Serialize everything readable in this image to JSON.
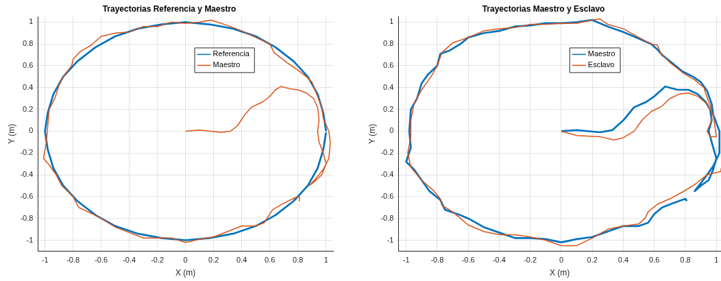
{
  "chart_data": [
    {
      "type": "line",
      "title": "Trayectorias Referencia y Maestro",
      "xlabel": "X (m)",
      "ylabel": "Y (m)",
      "xlim": [
        -1.05,
        1.05
      ],
      "ylim": [
        -1.1,
        1.05
      ],
      "xticks": [
        -1,
        -0.8,
        -0.6,
        -0.4,
        -0.2,
        0,
        0.2,
        0.4,
        0.6,
        0.8,
        1
      ],
      "yticks": [
        -1,
        -0.8,
        -0.6,
        -0.4,
        -0.2,
        0,
        0.2,
        0.4,
        0.6,
        0.8,
        1
      ],
      "grid": true,
      "legend": "top right",
      "series": [
        {
          "name": "Referencia",
          "color": "#0072bd",
          "x": [
            1,
            0.98,
            0.94,
            0.87,
            0.77,
            0.64,
            0.5,
            0.34,
            0.17,
            0,
            -0.17,
            -0.34,
            -0.5,
            -0.64,
            -0.77,
            -0.87,
            -0.94,
            -0.98,
            -1,
            -0.98,
            -0.94,
            -0.87,
            -0.77,
            -0.64,
            -0.5,
            -0.34,
            -0.17,
            0,
            0.17,
            0.34,
            0.5,
            0.64,
            0.77,
            0.87,
            0.94,
            0.98,
            1
          ],
          "values": [
            0,
            0.17,
            0.34,
            0.5,
            0.64,
            0.77,
            0.87,
            0.94,
            0.98,
            1,
            0.98,
            0.94,
            0.87,
            0.77,
            0.64,
            0.5,
            0.34,
            0.17,
            0,
            -0.17,
            -0.34,
            -0.5,
            -0.64,
            -0.77,
            -0.87,
            -0.94,
            -0.98,
            -1,
            -0.98,
            -0.94,
            -0.87,
            -0.77,
            -0.64,
            -0.5,
            -0.34,
            -0.17,
            -0.01
          ]
        },
        {
          "name": "Maestro",
          "color": "#d95319",
          "x": [
            0,
            0.1,
            0.18,
            0.25,
            0.32,
            0.37,
            0.42,
            0.47,
            0.55,
            0.6,
            0.64,
            0.68,
            0.74,
            0.8,
            0.86,
            0.91,
            0.94,
            0.95,
            0.94,
            0.95,
            0.98,
            1.0,
            0.97,
            0.92,
            0.88,
            0.93,
            0.98,
            1.02,
            1.03,
            1.02,
            0.98,
            0.97,
            0.93,
            0.9,
            0.86,
            0.8,
            0.72,
            0.63,
            0.6,
            0.5,
            0.4,
            0.3,
            0.18,
            0.1,
            0,
            -0.1,
            -0.2,
            -0.3,
            -0.4,
            -0.5,
            -0.6,
            -0.67,
            -0.75,
            -0.8,
            -0.81,
            -0.86,
            -0.9,
            -0.93,
            -0.97,
            -0.98,
            -0.99,
            -1.01,
            -0.97,
            -0.92,
            -0.88,
            -0.8,
            -0.76,
            -0.66,
            -0.6,
            -0.5,
            -0.4,
            -0.3,
            -0.2,
            -0.1,
            0,
            0.1,
            0.2,
            0.3,
            0.4,
            0.5,
            0.56,
            0.62,
            0.7,
            0.78,
            0.81,
            0.81
          ],
          "values": [
            0,
            0.01,
            0,
            -0.01,
            0,
            0.05,
            0.15,
            0.22,
            0.27,
            0.32,
            0.38,
            0.41,
            0.39,
            0.38,
            0.35,
            0.3,
            0.22,
            0.1,
            0,
            -0.1,
            -0.2,
            -0.3,
            -0.4,
            -0.46,
            -0.5,
            -0.43,
            -0.35,
            -0.25,
            -0.1,
            0,
            0.12,
            0.22,
            0.35,
            0.45,
            0.5,
            0.56,
            0.63,
            0.72,
            0.8,
            0.86,
            0.92,
            0.97,
            1.02,
            1.0,
            0.99,
            1.0,
            0.96,
            0.96,
            0.91,
            0.9,
            0.87,
            0.79,
            0.73,
            0.66,
            0.6,
            0.52,
            0.42,
            0.3,
            0.2,
            0.05,
            -0.1,
            -0.25,
            -0.31,
            -0.4,
            -0.5,
            -0.6,
            -0.7,
            -0.76,
            -0.8,
            -0.88,
            -0.93,
            -0.98,
            -0.98,
            -0.98,
            -1.02,
            -0.99,
            -0.97,
            -0.92,
            -0.87,
            -0.87,
            -0.84,
            -0.72,
            -0.66,
            -0.61,
            -0.6,
            -0.64
          ]
        }
      ]
    },
    {
      "type": "line",
      "title": "Trayectorias Maestro y Esclavo",
      "xlabel": "X (m)",
      "ylabel": "Y (m)",
      "xlim": [
        -1.05,
        1.03
      ],
      "ylim": [
        -1.1,
        1.05
      ],
      "xticks": [
        -1,
        -0.8,
        -0.6,
        -0.4,
        -0.2,
        0,
        0.2,
        0.4,
        0.6,
        0.8,
        1
      ],
      "yticks": [
        -1,
        -0.8,
        -0.6,
        -0.4,
        -0.2,
        0,
        0.2,
        0.4,
        0.6,
        0.8,
        1
      ],
      "grid": true,
      "legend": "top right",
      "series": [
        {
          "name": "Maestro",
          "color": "#0072bd",
          "x": [
            0,
            0.1,
            0.25,
            0.33,
            0.4,
            0.47,
            0.55,
            0.6,
            0.67,
            0.75,
            0.82,
            0.88,
            0.93,
            0.96,
            0.97,
            0.95,
            0.98,
            1.0,
            0.98,
            0.95,
            0.9,
            0.86,
            0.93,
            0.98,
            1.02,
            1.02,
            0.98,
            0.97,
            0.94,
            0.9,
            0.85,
            0.78,
            0.72,
            0.65,
            0.62,
            0.58,
            0.5,
            0.4,
            0.3,
            0.2,
            0.1,
            0,
            -0.1,
            -0.2,
            -0.3,
            -0.4,
            -0.5,
            -0.6,
            -0.65,
            -0.72,
            -0.78,
            -0.8,
            -0.86,
            -0.9,
            -0.93,
            -0.97,
            -0.98,
            -0.97,
            -1.0,
            -0.95,
            -0.9,
            -0.85,
            -0.78,
            -0.75,
            -0.65,
            -0.6,
            -0.5,
            -0.4,
            -0.3,
            -0.2,
            -0.1,
            0,
            0.1,
            0.2,
            0.3,
            0.4,
            0.5,
            0.56,
            0.6,
            0.65,
            0.72,
            0.8,
            0.81
          ],
          "values": [
            0,
            0.01,
            -0.01,
            0.01,
            0.1,
            0.22,
            0.27,
            0.32,
            0.41,
            0.38,
            0.38,
            0.34,
            0.27,
            0.2,
            0.1,
            0,
            -0.15,
            -0.25,
            -0.35,
            -0.45,
            -0.5,
            -0.55,
            -0.42,
            -0.32,
            -0.2,
            0,
            0.15,
            0.25,
            0.37,
            0.45,
            0.5,
            0.55,
            0.62,
            0.7,
            0.75,
            0.8,
            0.85,
            0.91,
            0.96,
            1.02,
            1.0,
            0.99,
            0.99,
            0.97,
            0.96,
            0.92,
            0.9,
            0.86,
            0.8,
            0.74,
            0.71,
            0.6,
            0.52,
            0.44,
            0.3,
            0.2,
            0,
            -0.15,
            -0.28,
            -0.35,
            -0.45,
            -0.55,
            -0.63,
            -0.72,
            -0.77,
            -0.8,
            -0.88,
            -0.93,
            -0.98,
            -0.98,
            -0.99,
            -1.02,
            -0.99,
            -0.97,
            -0.92,
            -0.87,
            -0.87,
            -0.84,
            -0.76,
            -0.7,
            -0.66,
            -0.62,
            -0.64
          ]
        },
        {
          "name": "Esclavo",
          "color": "#d95319",
          "x": [
            0,
            0.1,
            0.25,
            0.34,
            0.4,
            0.47,
            0.52,
            0.58,
            0.65,
            0.7,
            0.76,
            0.82,
            0.88,
            0.94,
            0.98,
            1.0,
            0.96,
            0.94,
            0.97,
            0.97,
            0.93,
            0.92,
            0.86,
            0.78,
            0.7,
            0.64,
            0.62,
            0.58,
            0.5,
            0.4,
            0.3,
            0.25,
            0.2,
            0.1,
            0,
            -0.1,
            -0.2,
            -0.3,
            -0.4,
            -0.5,
            -0.6,
            -0.7,
            -0.77,
            -0.8,
            -0.84,
            -0.9,
            -0.95,
            -0.97,
            -0.97,
            -0.99,
            -0.97,
            -0.9,
            -0.82,
            -0.78,
            -0.77,
            -0.7,
            -0.65,
            -0.6,
            -0.5,
            -0.4,
            -0.3,
            -0.2,
            -0.1,
            0,
            0.1,
            0.2,
            0.3,
            0.4,
            0.5,
            0.54,
            0.56,
            0.62,
            0.7,
            0.78,
            0.86,
            0.94,
            1.03,
            1.03
          ],
          "values": [
            0,
            -0.04,
            -0.05,
            -0.08,
            -0.06,
            0,
            0.1,
            0.18,
            0.23,
            0.3,
            0.34,
            0.35,
            0.32,
            0.25,
            0.15,
            -0.05,
            -0.05,
            0,
            0.1,
            0.2,
            0.35,
            0.4,
            0.47,
            0.54,
            0.63,
            0.72,
            0.79,
            0.8,
            0.86,
            0.94,
            0.98,
            1.03,
            1.02,
            0.99,
            0.99,
            0.98,
            0.98,
            0.95,
            0.94,
            0.92,
            0.86,
            0.81,
            0.72,
            0.6,
            0.5,
            0.38,
            0.25,
            0.1,
            -0.05,
            -0.2,
            -0.33,
            -0.45,
            -0.55,
            -0.62,
            -0.68,
            -0.74,
            -0.8,
            -0.86,
            -0.92,
            -0.95,
            -0.95,
            -0.97,
            -1.0,
            -1.05,
            -1.05,
            -0.98,
            -0.9,
            -0.87,
            -0.85,
            -0.8,
            -0.74,
            -0.67,
            -0.62,
            -0.56,
            -0.49,
            -0.4,
            -0.37,
            -0.34
          ]
        }
      ]
    }
  ]
}
